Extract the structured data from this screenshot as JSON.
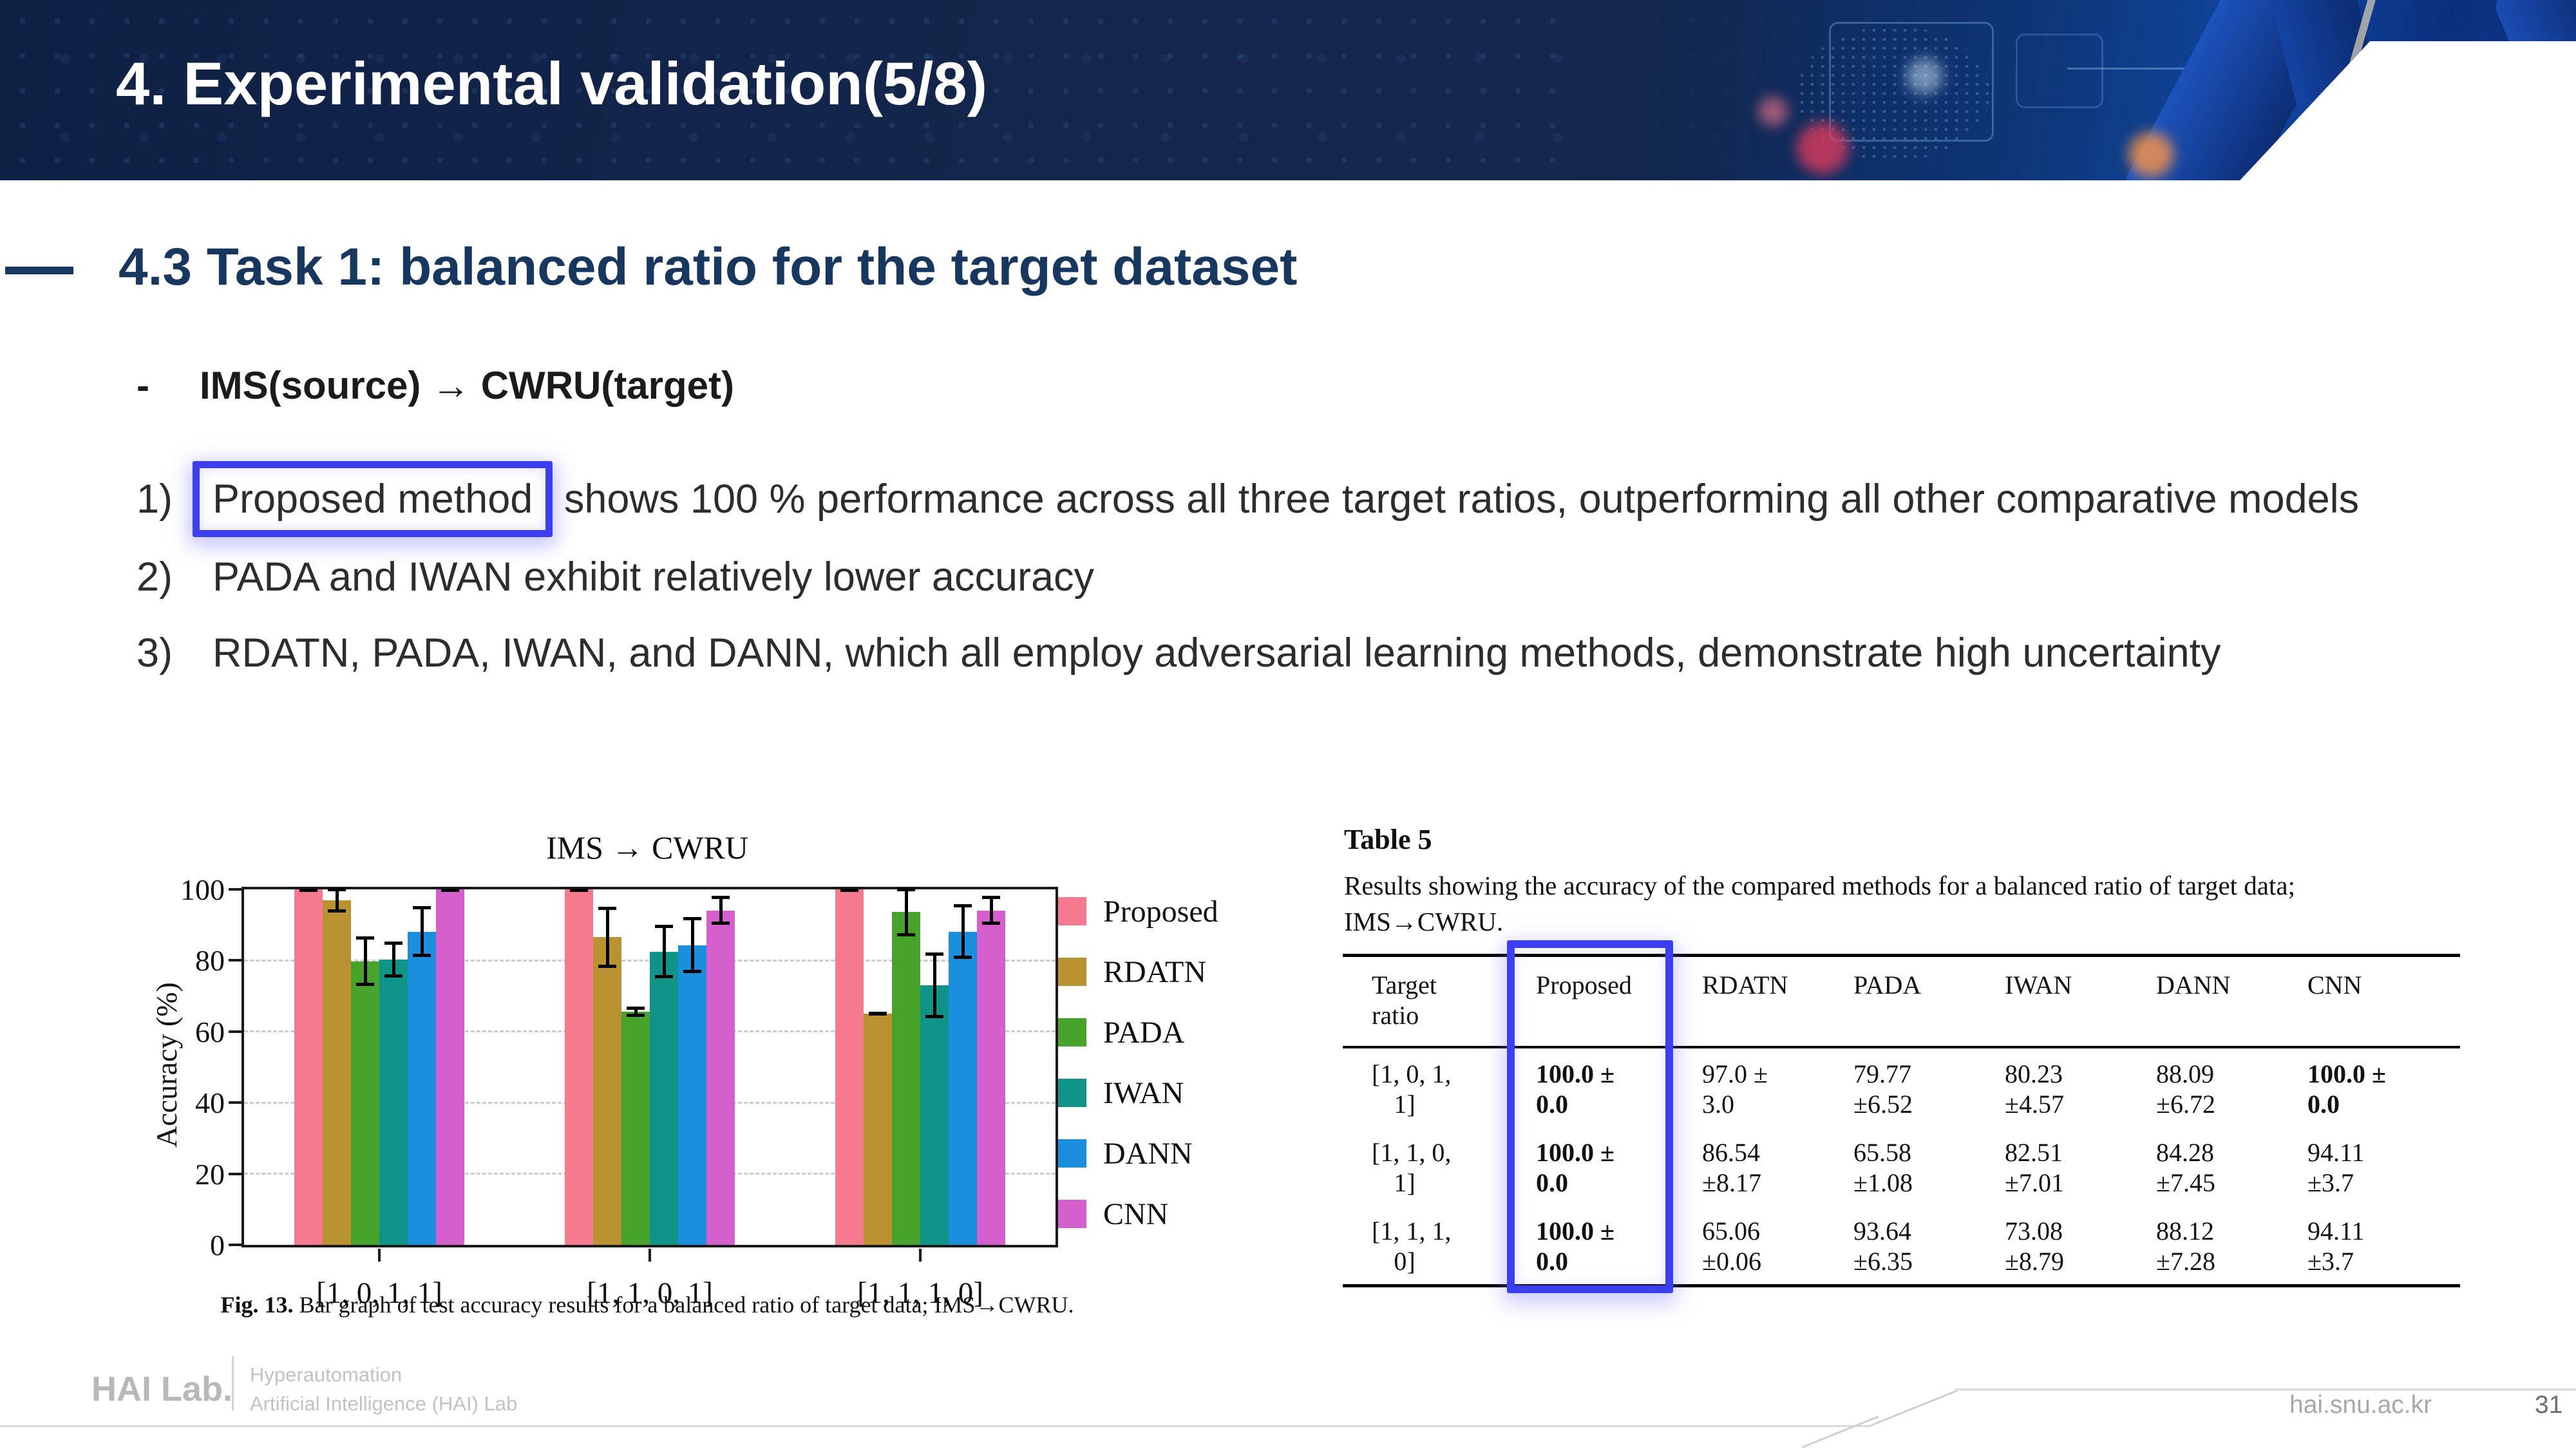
{
  "header": {
    "title": "4. Experimental validation(5/8)"
  },
  "section": {
    "title": "4.3 Task 1: balanced ratio for the target dataset",
    "bullet_dash": "-",
    "bullet": "IMS(source) → CWRU(target)"
  },
  "points": [
    {
      "num": "1)",
      "highlight": "Proposed method",
      "rest": " shows 100 % performance across all three target ratios, outperforming all other comparative models"
    },
    {
      "num": "2)",
      "text": "PADA and IWAN exhibit relatively lower accuracy"
    },
    {
      "num": "3)",
      "text": "RDATN, PADA, IWAN, and DANN, which all employ adversarial learning methods, demonstrate high uncertainty"
    }
  ],
  "chart_data": {
    "type": "bar",
    "title": "IMS → CWRU",
    "xlabel": "",
    "ylabel": "Accuracy (%)",
    "ylim": [
      0,
      100
    ],
    "yticks": [
      0,
      20,
      40,
      60,
      80,
      100
    ],
    "grid": "horizontal dashed at 20/40/60/80",
    "legend_position": "right",
    "categories": [
      "[1, 0, 1, 1]",
      "[1, 1, 0, 1]",
      "[1, 1, 1, 0]"
    ],
    "series": [
      {
        "name": "Proposed",
        "color": "#f5798f",
        "values": [
          100.0,
          100.0,
          100.0
        ],
        "errors": [
          0.0,
          0.0,
          0.0
        ]
      },
      {
        "name": "RDATN",
        "color": "#ba9231",
        "values": [
          97.0,
          86.54,
          65.06
        ],
        "errors": [
          3.0,
          8.17,
          0.06
        ]
      },
      {
        "name": "PADA",
        "color": "#47a32b",
        "values": [
          79.77,
          65.58,
          93.64
        ],
        "errors": [
          6.52,
          1.08,
          6.35
        ]
      },
      {
        "name": "IWAN",
        "color": "#10948a",
        "values": [
          80.23,
          82.51,
          73.08
        ],
        "errors": [
          4.57,
          7.01,
          8.79
        ]
      },
      {
        "name": "DANN",
        "color": "#1b8ede",
        "values": [
          88.09,
          84.28,
          88.12
        ],
        "errors": [
          6.72,
          7.45,
          7.28
        ]
      },
      {
        "name": "CNN",
        "color": "#d55fcd",
        "values": [
          100.0,
          94.11,
          94.11
        ],
        "errors": [
          0.0,
          3.7,
          3.7
        ]
      }
    ]
  },
  "figure": {
    "caption_label": "Fig. 13.",
    "caption_text": " Bar graph of test accuracy results for a balanced ratio of target data; IMS→CWRU."
  },
  "table": {
    "title": "Table 5",
    "caption": "Results showing the accuracy of the compared methods for a balanced ratio of target data; IMS→CWRU.",
    "columns": [
      {
        "lines": [
          "Target",
          "ratio"
        ]
      },
      {
        "lines": [
          "Proposed"
        ]
      },
      {
        "lines": [
          "RDATN"
        ]
      },
      {
        "lines": [
          "PADA"
        ]
      },
      {
        "lines": [
          "IWAN"
        ]
      },
      {
        "lines": [
          "DANN"
        ]
      },
      {
        "lines": [
          "CNN"
        ]
      }
    ],
    "rows": [
      {
        "target": [
          "[1, 0, 1,",
          "1]"
        ],
        "cells": [
          {
            "t": [
              "100.0 ±",
              "0.0"
            ],
            "b": true
          },
          {
            "t": [
              "97.0 ±",
              "3.0"
            ]
          },
          {
            "t": [
              "79.77",
              "±6.52"
            ]
          },
          {
            "t": [
              "80.23",
              "±4.57"
            ]
          },
          {
            "t": [
              "88.09",
              "±6.72"
            ]
          },
          {
            "t": [
              "100.0 ±",
              "0.0"
            ],
            "b": true
          }
        ]
      },
      {
        "target": [
          "[1, 1, 0,",
          "1]"
        ],
        "cells": [
          {
            "t": [
              "100.0 ±",
              "0.0"
            ],
            "b": true
          },
          {
            "t": [
              "86.54",
              "±8.17"
            ]
          },
          {
            "t": [
              "65.58",
              "±1.08"
            ]
          },
          {
            "t": [
              "82.51",
              "±7.01"
            ]
          },
          {
            "t": [
              "84.28",
              "±7.45"
            ]
          },
          {
            "t": [
              "94.11",
              "±3.7"
            ]
          }
        ]
      },
      {
        "target": [
          "[1, 1, 1,",
          "0]"
        ],
        "cells": [
          {
            "t": [
              "100.0 ±",
              "0.0"
            ],
            "b": true
          },
          {
            "t": [
              "65.06",
              "±0.06"
            ]
          },
          {
            "t": [
              "93.64",
              "±6.35"
            ]
          },
          {
            "t": [
              "73.08",
              "±8.79"
            ]
          },
          {
            "t": [
              "88.12",
              "±7.28"
            ]
          },
          {
            "t": [
              "94.11",
              "±3.7"
            ]
          }
        ]
      }
    ]
  },
  "footer": {
    "logo": "HAI Lab.",
    "org_line1": "Hyperautomation",
    "org_line2": "Artificial Intelligence (HAI) Lab",
    "url": "hai.snu.ac.kr",
    "page": "31"
  },
  "colors": {
    "header_navy": "#13264b",
    "heading_navy": "#17375f",
    "annotation_blue": "#3c3ff0",
    "grid_gray": "#cccccc"
  }
}
